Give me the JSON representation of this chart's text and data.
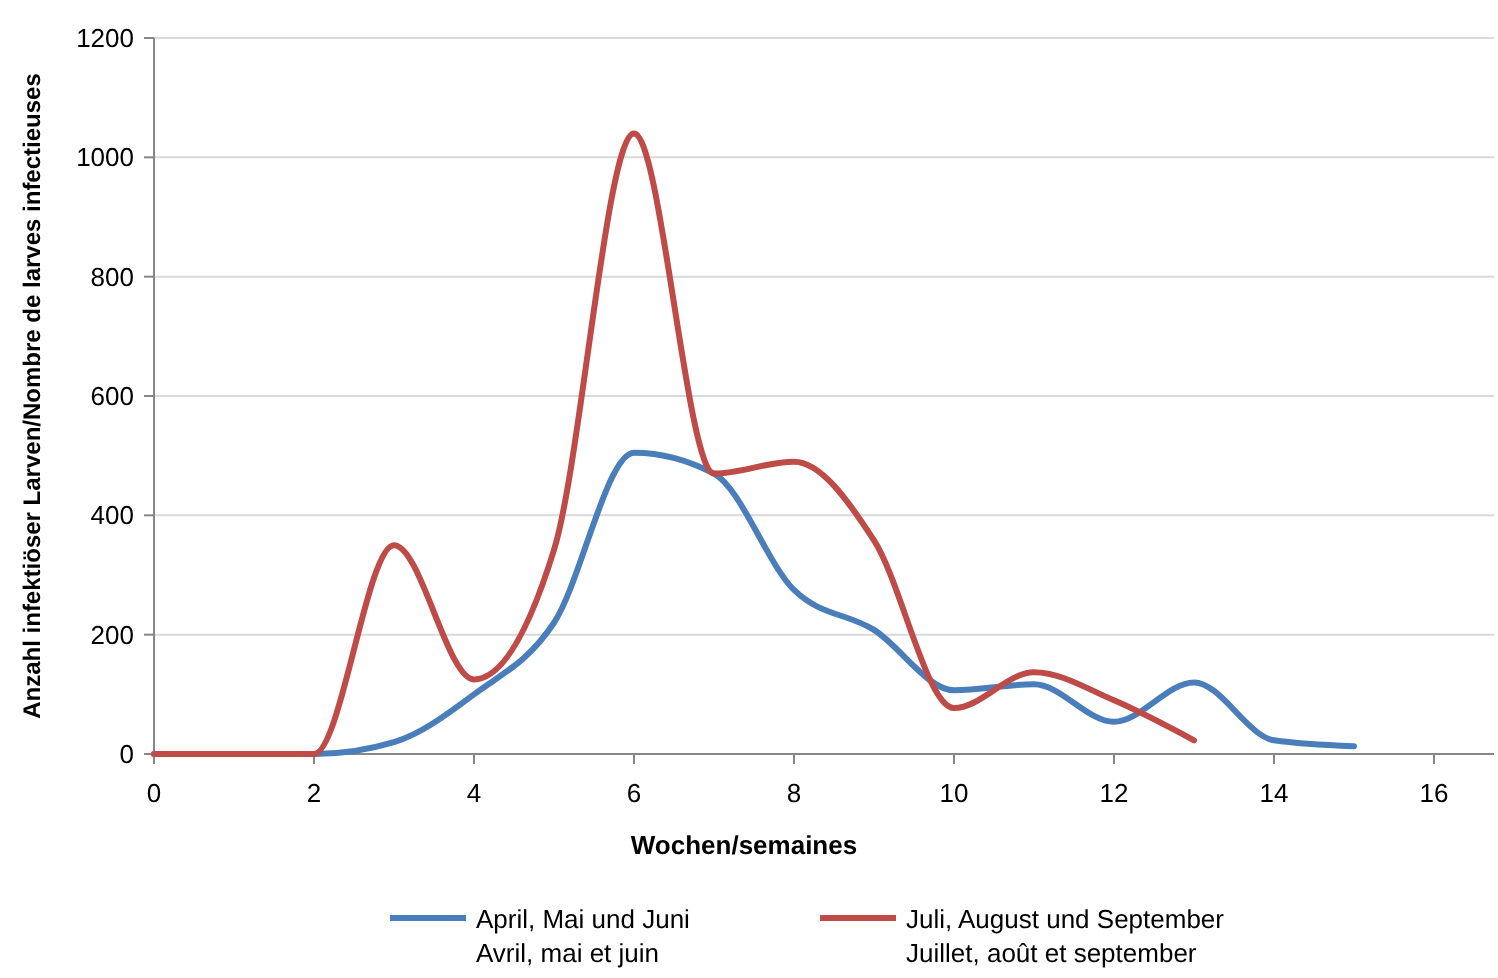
{
  "chart_data": {
    "type": "line",
    "xlabel": "Wochen/semaines",
    "ylabel": "Anzahl infektiöser Larven/Nombre de larves infectieuses",
    "xlim": [
      0,
      16.75
    ],
    "xticks": [
      0,
      2,
      4,
      6,
      8,
      10,
      12,
      14,
      16
    ],
    "ylim": [
      0,
      1200
    ],
    "yticks": [
      0,
      200,
      400,
      600,
      800,
      1000,
      1200
    ],
    "grid": "y",
    "legend": "bottom",
    "marker": "none",
    "line_style": "solid",
    "series": [
      {
        "name": "April, Mai und Juni\nAvril, mai et juin",
        "color": "#4a7ebb",
        "x": [
          0,
          1,
          2,
          3,
          4,
          5,
          6,
          7,
          8,
          9,
          10,
          11,
          12,
          13,
          14,
          15
        ],
        "values": [
          0,
          0,
          0,
          20,
          100,
          220,
          505,
          470,
          275,
          208,
          107,
          117,
          54,
          120,
          23,
          13
        ]
      },
      {
        "name": "Juli, August und September\nJuillet, août et september",
        "color": "#be4b48",
        "x": [
          0,
          1,
          2,
          3,
          4,
          5,
          6,
          7,
          8,
          9,
          10,
          11,
          12,
          13
        ],
        "values": [
          0,
          0,
          0,
          350,
          125,
          342,
          1040,
          470,
          490,
          358,
          77,
          137,
          90,
          23
        ]
      }
    ]
  }
}
